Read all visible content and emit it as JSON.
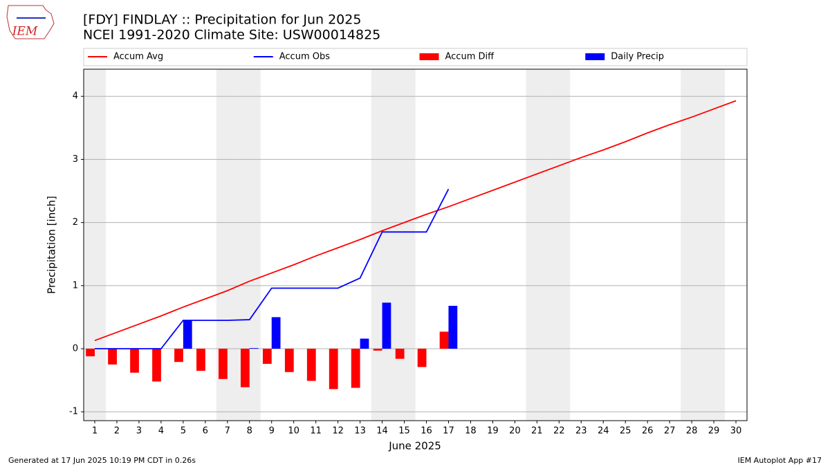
{
  "chart_data": {
    "type": "line",
    "title": "[FDY] FINDLAY :: Precipitation for Jun 2025",
    "subtitle": "NCEI 1991-2020 Climate Site: USW00014825",
    "x_label": "June 2025",
    "y_label": "Precipitation [inch]",
    "logo_text": "IEM",
    "footer_left": "Generated at 17 Jun 2025 10:19 PM CDT in 0.26s",
    "footer_right": "IEM Autoplot App #17",
    "x": [
      1,
      2,
      3,
      4,
      5,
      6,
      7,
      8,
      9,
      10,
      11,
      12,
      13,
      14,
      15,
      16,
      17,
      18,
      19,
      20,
      21,
      22,
      23,
      24,
      25,
      26,
      27,
      28,
      29,
      30
    ],
    "xlim": [
      0.5,
      30.5
    ],
    "xticks": [
      1,
      2,
      3,
      4,
      5,
      6,
      7,
      8,
      9,
      10,
      11,
      12,
      13,
      14,
      15,
      16,
      17,
      18,
      19,
      20,
      21,
      22,
      23,
      24,
      25,
      26,
      27,
      28,
      29,
      30
    ],
    "ylim": [
      -1.14,
      4.43
    ],
    "yticks": [
      -1,
      0,
      1,
      2,
      3,
      4
    ],
    "grid": true,
    "weekends": [
      1,
      7,
      8,
      14,
      15,
      21,
      22,
      28,
      29
    ],
    "weekend_color": "#eeeeee",
    "series": [
      {
        "name": "Accum Avg",
        "type": "line",
        "color": "#ff0000",
        "values": [
          0.13,
          0.26,
          0.39,
          0.52,
          0.66,
          0.79,
          0.92,
          1.07,
          1.2,
          1.33,
          1.47,
          1.6,
          1.73,
          1.87,
          2.0,
          2.13,
          2.25,
          2.38,
          2.51,
          2.64,
          2.77,
          2.9,
          3.03,
          3.15,
          3.28,
          3.42,
          3.55,
          3.67,
          3.8,
          3.93
        ]
      },
      {
        "name": "Accum Obs",
        "type": "line",
        "color": "#0000ff",
        "values": [
          0,
          0,
          0,
          0,
          0.45,
          0.45,
          0.45,
          0.46,
          0.96,
          0.96,
          0.96,
          0.96,
          1.12,
          1.85,
          1.85,
          1.85,
          2.53,
          null,
          null,
          null,
          null,
          null,
          null,
          null,
          null,
          null,
          null,
          null,
          null,
          null
        ]
      },
      {
        "name": "Accum Diff",
        "type": "bar",
        "color": "#ff0000",
        "offset": -0.4,
        "values": [
          -0.12,
          -0.25,
          -0.38,
          -0.52,
          -0.21,
          -0.35,
          -0.48,
          -0.61,
          -0.24,
          -0.37,
          -0.51,
          -0.64,
          -0.62,
          -0.03,
          -0.16,
          -0.29,
          0.27,
          null,
          null,
          null,
          null,
          null,
          null,
          null,
          null,
          null,
          null,
          null,
          null,
          null
        ]
      },
      {
        "name": "Daily Precip",
        "type": "bar",
        "color": "#0000ff",
        "offset": 0,
        "values": [
          0,
          0,
          0,
          0,
          0.45,
          0,
          0,
          0.01,
          0.5,
          0,
          0,
          0,
          0.16,
          0.73,
          0,
          0,
          0.68,
          null,
          null,
          null,
          null,
          null,
          null,
          null,
          null,
          null,
          null,
          null,
          null,
          null
        ]
      }
    ]
  }
}
